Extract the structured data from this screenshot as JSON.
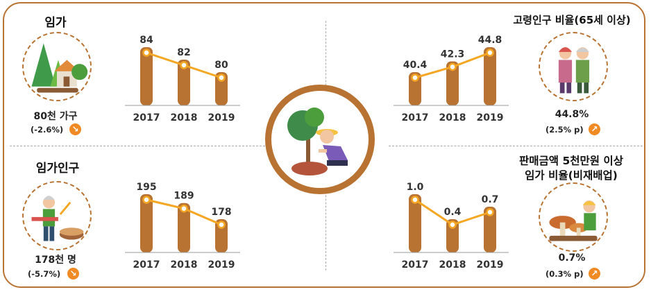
{
  "panels": {
    "households": {
      "title": "임가",
      "value": "80천 가구",
      "change": "(-2.6%)",
      "direction": "down",
      "illustration": "forest-house-icon"
    },
    "population": {
      "title": "임가인구",
      "value": "178천 명",
      "change": "(-5.7%)",
      "direction": "down",
      "illustration": "woodcutter-icon"
    },
    "elderly": {
      "title": "고령인구 비율(65세 이상)",
      "value": "44.8%",
      "change": "(2.5% p)",
      "direction": "up",
      "illustration": "elderly-couple-icon"
    },
    "sales": {
      "title_line1": "판매금액 5천만원 이상",
      "title_line2": "임가 비율(비재배업)",
      "value": "0.7%",
      "change": "(0.3% p)",
      "direction": "up",
      "illustration": "mushroom-farmer-icon"
    }
  },
  "center_illustration": "planting-tree-icon",
  "colors": {
    "bar": "#b87333",
    "line": "#f5a623",
    "frame": "#b87333",
    "badge": "#f08a24"
  },
  "chart_data": [
    {
      "id": "households",
      "type": "bar",
      "categories": [
        "2017",
        "2018",
        "2019"
      ],
      "values": [
        84,
        82,
        80
      ],
      "value_labels": [
        "84",
        "82",
        "80"
      ],
      "overlay_line": true
    },
    {
      "id": "population",
      "type": "bar",
      "categories": [
        "2017",
        "2018",
        "2019"
      ],
      "values": [
        195,
        189,
        178
      ],
      "value_labels": [
        "195",
        "189",
        "178"
      ],
      "overlay_line": true
    },
    {
      "id": "elderly",
      "type": "bar",
      "categories": [
        "2017",
        "2018",
        "2019"
      ],
      "values": [
        40.4,
        42.3,
        44.8
      ],
      "value_labels": [
        "40.4",
        "42.3",
        "44.8"
      ],
      "overlay_line": true
    },
    {
      "id": "sales",
      "type": "bar",
      "categories": [
        "2017",
        "2018",
        "2019"
      ],
      "values": [
        1.0,
        0.4,
        0.7
      ],
      "value_labels": [
        "1.0",
        "0.4",
        "0.7"
      ],
      "overlay_line": true
    }
  ]
}
